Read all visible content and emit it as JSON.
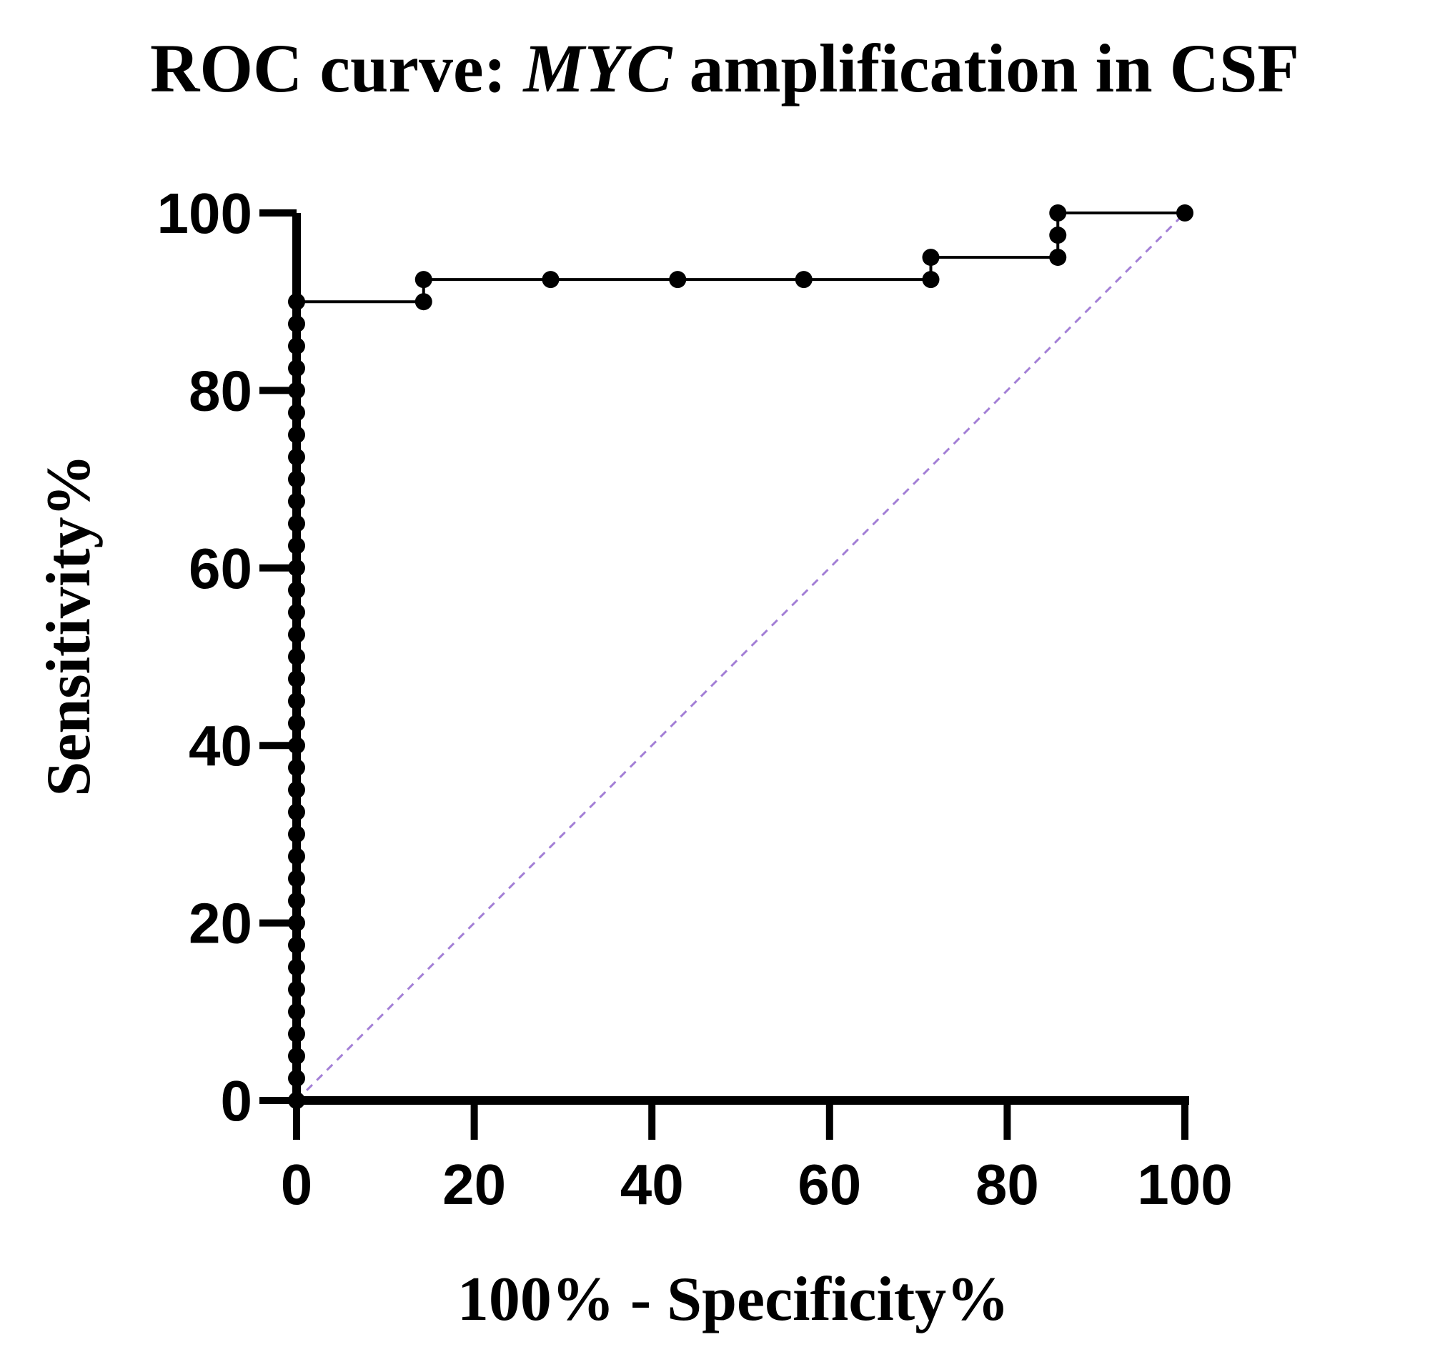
{
  "chart_data": {
    "type": "line",
    "title_prefix": "ROC curve: ",
    "title_italic": "MYC",
    "title_suffix": " amplification in CSF",
    "xlabel": "100% - Specificity%",
    "ylabel": "Sensitivity%",
    "xlim": [
      0,
      100
    ],
    "ylim": [
      0,
      100
    ],
    "x_ticks": [
      0,
      20,
      40,
      60,
      80,
      100
    ],
    "y_ticks": [
      0,
      20,
      40,
      60,
      80,
      100
    ],
    "x_tick_labels": [
      "0",
      "20",
      "40",
      "60",
      "80",
      "100"
    ],
    "y_tick_labels": [
      "0",
      "20",
      "40",
      "60",
      "80",
      "100"
    ],
    "grid": false,
    "series": [
      {
        "name": "ROC",
        "color": "#000000",
        "x": [
          0,
          0,
          0,
          0,
          0,
          0,
          0,
          0,
          0,
          0,
          0,
          0,
          0,
          0,
          0,
          0,
          0,
          0,
          0,
          0,
          0,
          0,
          0,
          0,
          0,
          0,
          0,
          0,
          0,
          0,
          0,
          0,
          0,
          0,
          0,
          0,
          0,
          14.3,
          14.3,
          28.6,
          42.9,
          57.1,
          71.4,
          71.4,
          85.7,
          85.7,
          85.7,
          100
        ],
        "y": [
          0,
          2.5,
          5,
          7.5,
          10,
          12.5,
          15,
          17.5,
          20,
          22.5,
          25,
          27.5,
          30,
          32.5,
          35,
          37.5,
          40,
          42.5,
          45,
          47.5,
          50,
          52.5,
          55,
          57.5,
          60,
          62.5,
          65,
          67.5,
          70,
          72.5,
          75,
          77.5,
          80,
          82.5,
          85,
          87.5,
          90,
          90,
          92.5,
          92.5,
          92.5,
          92.5,
          92.5,
          95,
          95,
          97.5,
          100,
          100
        ]
      }
    ],
    "reference_line": {
      "name": "Identity line",
      "color": "#a37fd6",
      "x": [
        0,
        100
      ],
      "y": [
        0,
        100
      ]
    }
  }
}
